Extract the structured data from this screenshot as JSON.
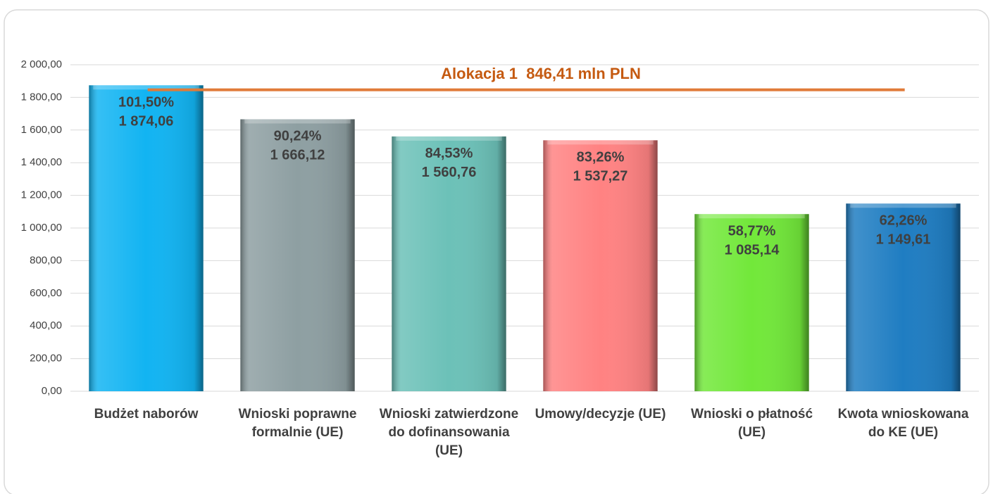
{
  "chart_data": {
    "type": "bar",
    "annotation": "Alokacja 1  846,41 mln PLN",
    "reference_value": 1846.41,
    "reference_color": "#e07b39",
    "categories": [
      "Budżet naborów",
      "Wnioski poprawne formalnie (UE)",
      "Wnioski zatwierdzone do dofinansowania (UE)",
      "Umowy/decyzje (UE)",
      "Wnioski o płatność (UE)",
      "Kwota wnioskowana do KE (UE)"
    ],
    "values": [
      1874.06,
      1666.12,
      1560.76,
      1537.27,
      1085.14,
      1149.61
    ],
    "value_labels": [
      "1 874,06",
      "1 666,12",
      "1 560,76",
      "1 537,27",
      "1 085,14",
      "1 149,61"
    ],
    "percentages": [
      101.5,
      90.24,
      84.53,
      83.26,
      58.77,
      62.26
    ],
    "percentage_labels": [
      "101,50%",
      "90,24%",
      "84,53%",
      "83,26%",
      "58,77%",
      "62,26%"
    ],
    "colors": [
      "#12b4f2",
      "#8e9fa2",
      "#6cc1b8",
      "#ff8282",
      "#72e83a",
      "#1f7dc2"
    ],
    "ylim": [
      0,
      2000
    ],
    "yticks": [
      {
        "value": 0,
        "label": "0,00"
      },
      {
        "value": 200,
        "label": "200,00"
      },
      {
        "value": 400,
        "label": "400,00"
      },
      {
        "value": 600,
        "label": "600,00"
      },
      {
        "value": 800,
        "label": "800,00"
      },
      {
        "value": 1000,
        "label": "1 000,00"
      },
      {
        "value": 1200,
        "label": "1 200,00"
      },
      {
        "value": 1400,
        "label": "1 400,00"
      },
      {
        "value": 1600,
        "label": "1 600,00"
      },
      {
        "value": 1800,
        "label": "1 800,00"
      },
      {
        "value": 2000,
        "label": "2 000,00"
      }
    ],
    "grid": true
  }
}
